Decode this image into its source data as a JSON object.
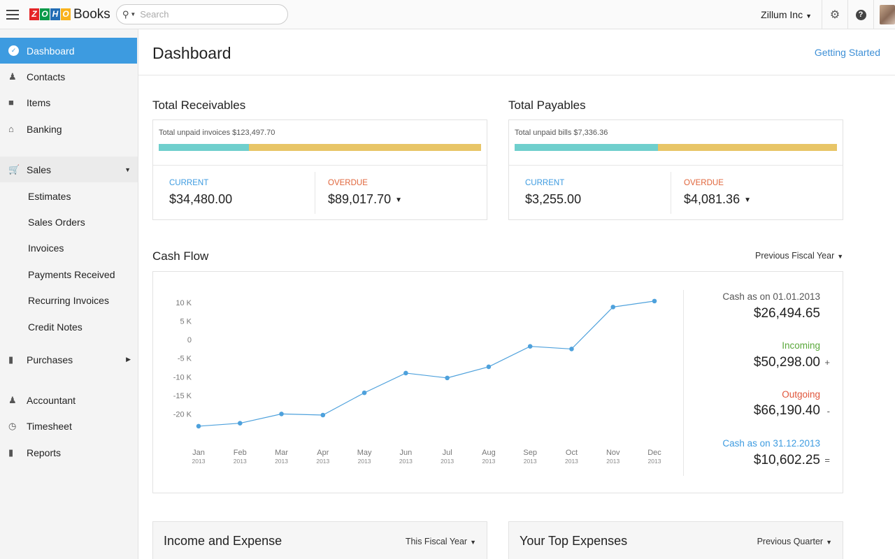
{
  "app": {
    "logo_letters": [
      "Z",
      "O",
      "H",
      "O"
    ],
    "logo_colors": [
      "#e42527",
      "#089949",
      "#226db4",
      "#f9b21d"
    ],
    "product": "Books"
  },
  "search": {
    "placeholder": "Search"
  },
  "topbar": {
    "org_name": "Zillum Inc"
  },
  "sidebar": {
    "dashboard": "Dashboard",
    "contacts": "Contacts",
    "items": "Items",
    "banking": "Banking",
    "sales": "Sales",
    "sales_sub": [
      "Estimates",
      "Sales Orders",
      "Invoices",
      "Payments Received",
      "Recurring Invoices",
      "Credit Notes"
    ],
    "purchases": "Purchases",
    "accountant": "Accountant",
    "timesheet": "Timesheet",
    "reports": "Reports"
  },
  "header": {
    "title": "Dashboard",
    "getting_started": "Getting Started"
  },
  "receivables": {
    "title": "Total Receivables",
    "unpaid": "Total unpaid invoices $123,497.70",
    "current_label": "CURRENT",
    "current_value": "$34,480.00",
    "overdue_label": "OVERDUE",
    "overdue_value": "$89,017.70",
    "current_fraction": 0.279
  },
  "payables": {
    "title": "Total Payables",
    "unpaid": "Total unpaid bills $7,336.36",
    "current_label": "CURRENT",
    "current_value": "$3,255.00",
    "overdue_label": "OVERDUE",
    "overdue_value": "$4,081.36",
    "current_fraction": 0.444
  },
  "cashflow": {
    "title": "Cash Flow",
    "period": "Previous Fiscal Year",
    "opening_label": "Cash as on 01.01.2013",
    "opening_value": "$26,494.65",
    "incoming_label": "Incoming",
    "incoming_value": "$50,298.00",
    "incoming_sign": "+",
    "outgoing_label": "Outgoing",
    "outgoing_value": "$66,190.40",
    "outgoing_sign": "-",
    "closing_label": "Cash as on 31.12.2013",
    "closing_value": "$10,602.25",
    "closing_sign": "=",
    "colors": {
      "incoming": "#5aa83b",
      "outgoing": "#e0553b",
      "closing": "#3d9be0",
      "line": "#4ea1dc"
    }
  },
  "chart_data": {
    "type": "line",
    "title": "Cash Flow",
    "categories": [
      "Jan",
      "Feb",
      "Mar",
      "Apr",
      "May",
      "Jun",
      "Jul",
      "Aug",
      "Sep",
      "Oct",
      "Nov",
      "Dec"
    ],
    "year_label": "2013",
    "y_ticks": [
      10000,
      5000,
      0,
      -5000,
      -10000,
      -15000,
      -20000
    ],
    "y_tick_labels": [
      "10 K",
      "5 K",
      "0",
      "-5 K",
      "-10 K",
      "-15 K",
      "-20 K"
    ],
    "ylim": [
      -23500,
      10000
    ],
    "series": [
      {
        "name": "Cash",
        "values": [
          -23300,
          -22500,
          -20000,
          -20300,
          -14300,
          -9000,
          -10300,
          -7300,
          -1800,
          -2500,
          8800,
          10400
        ]
      }
    ]
  },
  "bottom": {
    "income_expense_title": "Income and Expense",
    "income_expense_period": "This Fiscal Year",
    "top_expenses_title": "Your Top Expenses",
    "top_expenses_period": "Previous Quarter"
  }
}
